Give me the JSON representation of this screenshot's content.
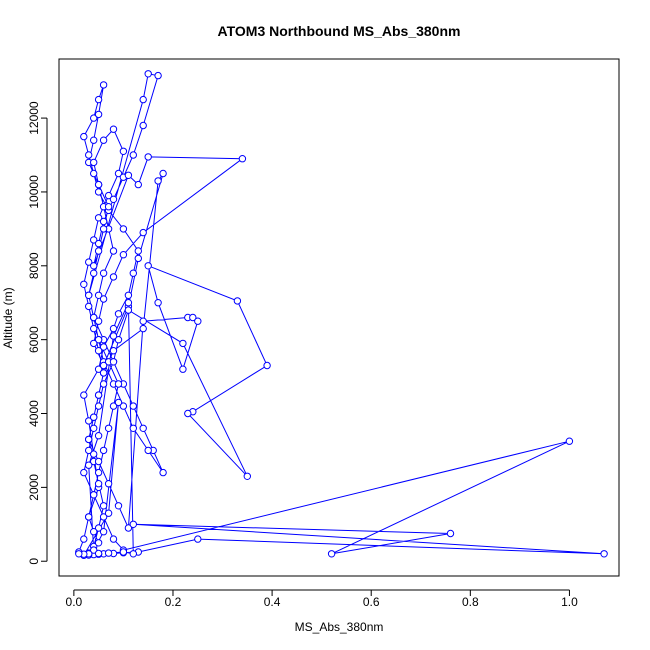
{
  "chart_data": {
    "type": "line",
    "title": "ATOM3 Northbound MS_Abs_380nm",
    "xlabel": "MS_Abs_380nm",
    "ylabel": "Altitude (m)",
    "xlim": [
      -0.03,
      1.1
    ],
    "ylim": [
      -400,
      13600
    ],
    "xticks": [
      "0.0",
      "0.2",
      "0.4",
      "0.6",
      "0.8",
      "1.0"
    ],
    "yticks": [
      "0",
      "2000",
      "4000",
      "6000",
      "8000",
      "10000",
      "12000"
    ],
    "grid": false,
    "legend": "none",
    "series": [
      {
        "color": "#0000ff",
        "marker": "open-circle",
        "x": [
          0.01,
          0.02,
          0.03,
          0.05,
          0.04,
          0.03,
          0.02,
          0.05,
          0.06,
          0.08,
          0.09,
          0.11,
          0.12,
          0.13,
          0.1,
          0.07,
          0.05,
          0.04,
          0.03,
          0.02,
          0.04,
          0.05,
          0.06,
          0.05,
          0.04,
          0.03,
          0.05,
          0.06,
          0.07,
          0.08,
          0.06,
          0.05,
          0.04,
          0.06,
          0.08,
          0.1,
          0.12,
          0.14,
          0.16,
          0.18,
          0.15,
          0.12,
          0.1,
          0.08,
          0.06,
          0.05,
          0.04,
          0.03,
          0.04,
          0.05,
          0.06,
          0.07,
          0.05,
          0.04,
          0.06,
          0.08,
          0.1,
          0.09,
          0.07,
          0.05,
          0.04,
          0.03,
          0.02,
          0.03,
          0.04,
          0.05,
          0.06,
          0.05,
          0.04,
          0.03,
          0.04,
          0.05,
          0.06,
          0.05,
          0.04,
          0.03,
          0.02,
          0.03,
          0.04,
          0.05,
          0.04,
          0.03,
          0.04,
          0.05,
          0.06,
          0.07,
          0.08,
          0.09,
          0.07,
          0.05,
          0.04,
          0.03,
          0.14,
          0.15,
          0.17,
          0.14,
          0.12,
          0.1,
          0.08,
          0.06,
          0.05,
          0.04,
          0.11,
          0.13,
          0.15,
          0.34,
          0.14,
          0.1,
          0.08,
          0.06,
          0.05,
          0.04,
          0.06,
          0.11,
          0.13,
          0.18,
          0.17,
          0.14,
          0.08,
          0.06,
          0.05,
          0.04,
          0.03,
          0.05,
          0.07,
          0.09,
          0.11,
          0.14,
          0.23,
          0.24,
          0.25,
          0.22,
          0.17,
          0.15,
          0.33,
          0.39,
          0.24,
          0.23,
          0.35,
          0.22,
          0.11,
          0.09,
          0.08,
          0.06,
          0.05,
          0.04,
          0.03,
          0.02,
          0.04,
          0.06,
          0.08,
          0.1,
          1.0,
          0.52,
          0.76,
          0.12,
          1.07,
          0.25,
          0.13,
          0.1,
          0.08,
          0.06,
          0.05,
          0.04,
          0.03,
          0.02,
          0.07,
          0.09,
          0.06,
          0.04,
          0.03,
          0.05,
          0.08,
          0.11,
          0.12,
          0.1,
          0.07,
          0.05,
          0.03,
          0.02,
          0.01
        ],
        "y": [
          250,
          600,
          1200,
          2000,
          2900,
          3800,
          4500,
          5200,
          5800,
          6300,
          6700,
          7200,
          7800,
          8400,
          9000,
          9500,
          10000,
          10500,
          11000,
          11500,
          12000,
          12500,
          12900,
          12100,
          11400,
          10800,
          10200,
          9600,
          9000,
          8400,
          7800,
          7200,
          6600,
          6000,
          5400,
          4800,
          4200,
          3600,
          3000,
          2400,
          3000,
          3600,
          4200,
          4800,
          5400,
          6000,
          6600,
          7200,
          7800,
          8400,
          9000,
          9600,
          10200,
          10800,
          11400,
          11700,
          11100,
          10500,
          9900,
          9300,
          8700,
          8100,
          7500,
          6900,
          6300,
          5700,
          5100,
          4500,
          3900,
          3300,
          2700,
          2100,
          1500,
          900,
          400,
          200,
          180,
          220,
          300,
          500,
          800,
          1200,
          1800,
          2400,
          3000,
          3600,
          4200,
          4800,
          5400,
          6000,
          6600,
          7200,
          12500,
          13200,
          13150,
          11800,
          11000,
          10400,
          9800,
          9200,
          8600,
          8000,
          10450,
          10200,
          10950,
          10900,
          8900,
          8300,
          7700,
          7100,
          6500,
          5900,
          5300,
          6900,
          8200,
          10500,
          10300,
          6300,
          5700,
          5100,
          4500,
          3900,
          3300,
          2700,
          2100,
          1500,
          900,
          6500,
          6600,
          6600,
          6500,
          5200,
          7000,
          8000,
          7050,
          5300,
          4050,
          4000,
          2300,
          5900,
          6800,
          6000,
          5400,
          4800,
          4200,
          3600,
          3000,
          2400,
          1800,
          1200,
          600,
          300,
          3250,
          200,
          750,
          1000,
          200,
          600,
          250,
          230,
          210,
          200,
          190,
          180,
          170,
          160,
          1300,
          4300,
          800,
          300,
          2600,
          3400,
          6100,
          7000,
          200,
          250,
          220,
          210,
          200,
          190,
          200
        ]
      }
    ]
  }
}
